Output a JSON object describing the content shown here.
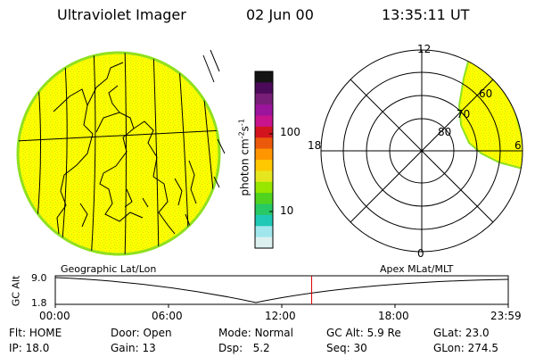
{
  "header": {
    "title": "Ultraviolet Imager",
    "date": "02 Jun 00",
    "time": "13:35:11 UT"
  },
  "colorbar": {
    "unit_label": "photon cm-2s-1",
    "unit_base": "photon cm",
    "unit_exp1": "-2",
    "unit_mid": "s",
    "unit_exp2": "-1",
    "tick_high": "100",
    "tick_low": "10",
    "colors": [
      "#141414",
      "#4b0a5a",
      "#781e78",
      "#9b149b",
      "#c8148c",
      "#d2141e",
      "#eb5a0a",
      "#ff9600",
      "#ffc800",
      "#e6e61e",
      "#96e600",
      "#50d21e",
      "#28c864",
      "#1ec8b4",
      "#a0e6ec",
      "#dcf0f0"
    ]
  },
  "polar": {
    "labels": {
      "top": "12",
      "left": "18",
      "right": "6",
      "bottom": "0"
    },
    "lat_labels": [
      "60",
      "70",
      "80"
    ]
  },
  "timeline": {
    "left_label": "Geographic Lat/Lon",
    "right_label": "Apex MLat/MLT",
    "y_axis": "GC Alt",
    "y_top": "9.0",
    "y_bottom": "1.8",
    "times": [
      "00:00",
      "06:00",
      "12:00",
      "18:00",
      "23:59"
    ],
    "marker_fraction": 0.566
  },
  "status": {
    "row1": [
      {
        "key": "Flt:",
        "val": "HOME"
      },
      {
        "key": "Door:",
        "val": "Open"
      },
      {
        "key": "Mode:",
        "val": "Normal"
      },
      {
        "key": "GC Alt:",
        "val": "5.9 Re"
      },
      {
        "key": "GLat:",
        "val": "23.0"
      }
    ],
    "row2": [
      {
        "key": "IP:",
        "val": "18.0"
      },
      {
        "key": "Gain:",
        "val": "13"
      },
      {
        "key": "Dsp:",
        "val": "5.2"
      },
      {
        "key": "Seq:",
        "val": "30"
      },
      {
        "key": "GLon:",
        "val": "274.5"
      }
    ]
  },
  "colors": {
    "image_fill": "#ffff00",
    "image_rim": "#90e020",
    "marker": "#dd0000"
  }
}
